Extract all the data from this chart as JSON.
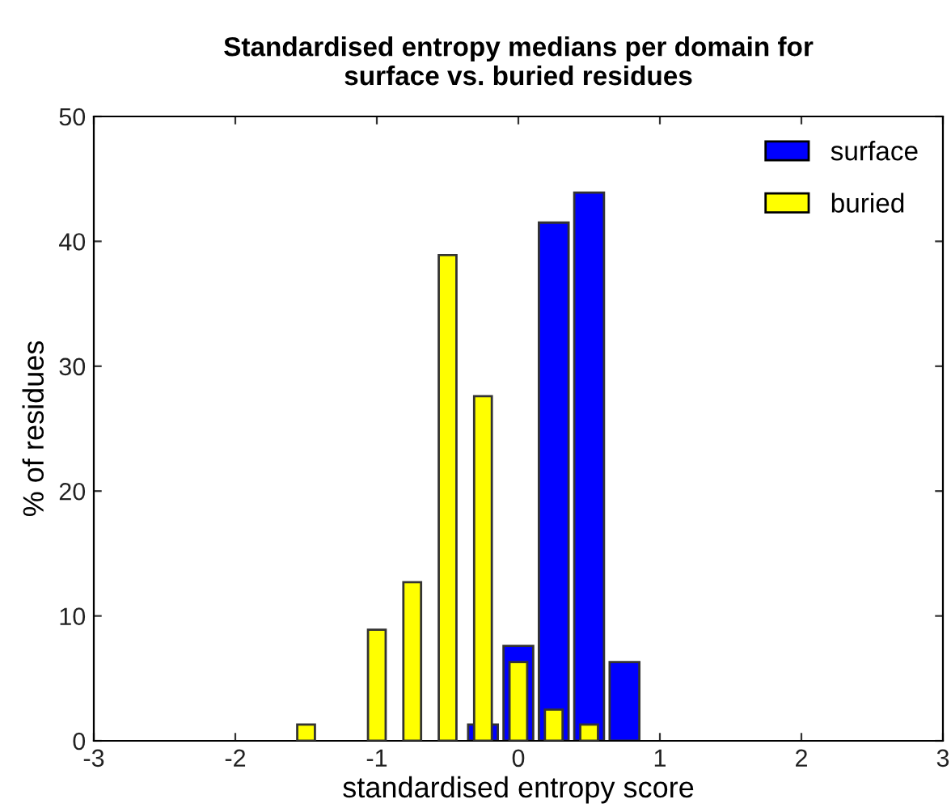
{
  "chart_data": {
    "type": "bar",
    "title": "Standardised entropy medians per domain for\nsurface vs. buried residues",
    "xlabel": "standardised entropy score",
    "ylabel": "% of residues",
    "series": [
      {
        "name": "surface",
        "color": "#0000ff",
        "x": [
          -0.25,
          0,
          0.25,
          0.5,
          0.75
        ],
        "values": [
          1.3,
          7.6,
          41.5,
          43.9,
          6.3
        ]
      },
      {
        "name": "buried",
        "color": "#ffff00",
        "x": [
          -1.5,
          -1.0,
          -0.75,
          -0.5,
          -0.25,
          0,
          0.25,
          0.5
        ],
        "values": [
          1.3,
          8.9,
          12.7,
          38.9,
          27.6,
          6.3,
          2.5,
          1.3
        ]
      }
    ],
    "xlim": [
      -3,
      3
    ],
    "xticks": [
      -3,
      -2,
      -1,
      0,
      1,
      2,
      3
    ],
    "ylim": [
      0,
      50
    ],
    "yticks": [
      0,
      10,
      20,
      30,
      40,
      50
    ],
    "grid": false,
    "legend": "top right"
  }
}
